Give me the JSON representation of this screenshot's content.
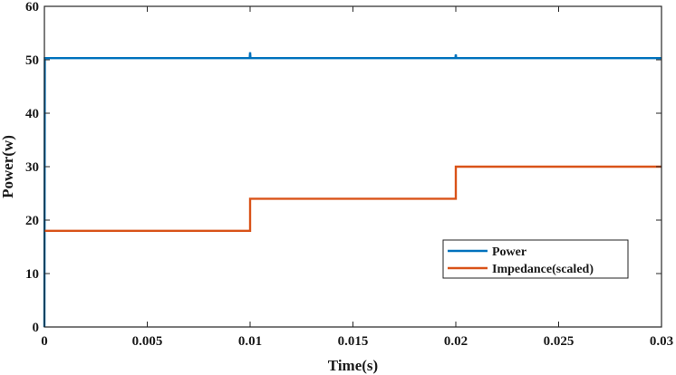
{
  "chart_data": {
    "type": "line",
    "title": "",
    "xlabel": "Time(s)",
    "ylabel": "Power(w)",
    "xlim": [
      0,
      0.03
    ],
    "ylim": [
      0,
      60
    ],
    "xticks": [
      0,
      0.005,
      0.01,
      0.015,
      0.02,
      0.025,
      0.03
    ],
    "xtick_labels": [
      "0",
      "0.005",
      "0.01",
      "0.015",
      "0.02",
      "0.025",
      "0.03"
    ],
    "yticks": [
      0,
      10,
      20,
      30,
      40,
      50,
      60
    ],
    "ytick_labels": [
      "0",
      "10",
      "20",
      "30",
      "40",
      "50",
      "60"
    ],
    "grid": false,
    "legend_position": "lower-right",
    "series": [
      {
        "name": "Power",
        "color": "#0072BD",
        "points": [
          [
            0,
            0
          ],
          [
            2e-05,
            50.3
          ],
          [
            0.00998,
            50.3
          ],
          [
            0.01,
            51.4
          ],
          [
            0.01002,
            50.3
          ],
          [
            0.01998,
            50.3
          ],
          [
            0.02,
            51.0
          ],
          [
            0.02002,
            50.3
          ],
          [
            0.03,
            50.3
          ]
        ]
      },
      {
        "name": "Impedance(scaled)",
        "color": "#D95319",
        "points": [
          [
            0,
            18
          ],
          [
            0.01,
            18
          ],
          [
            0.01,
            24
          ],
          [
            0.02,
            24
          ],
          [
            0.02,
            30
          ],
          [
            0.03,
            30
          ]
        ]
      }
    ]
  }
}
